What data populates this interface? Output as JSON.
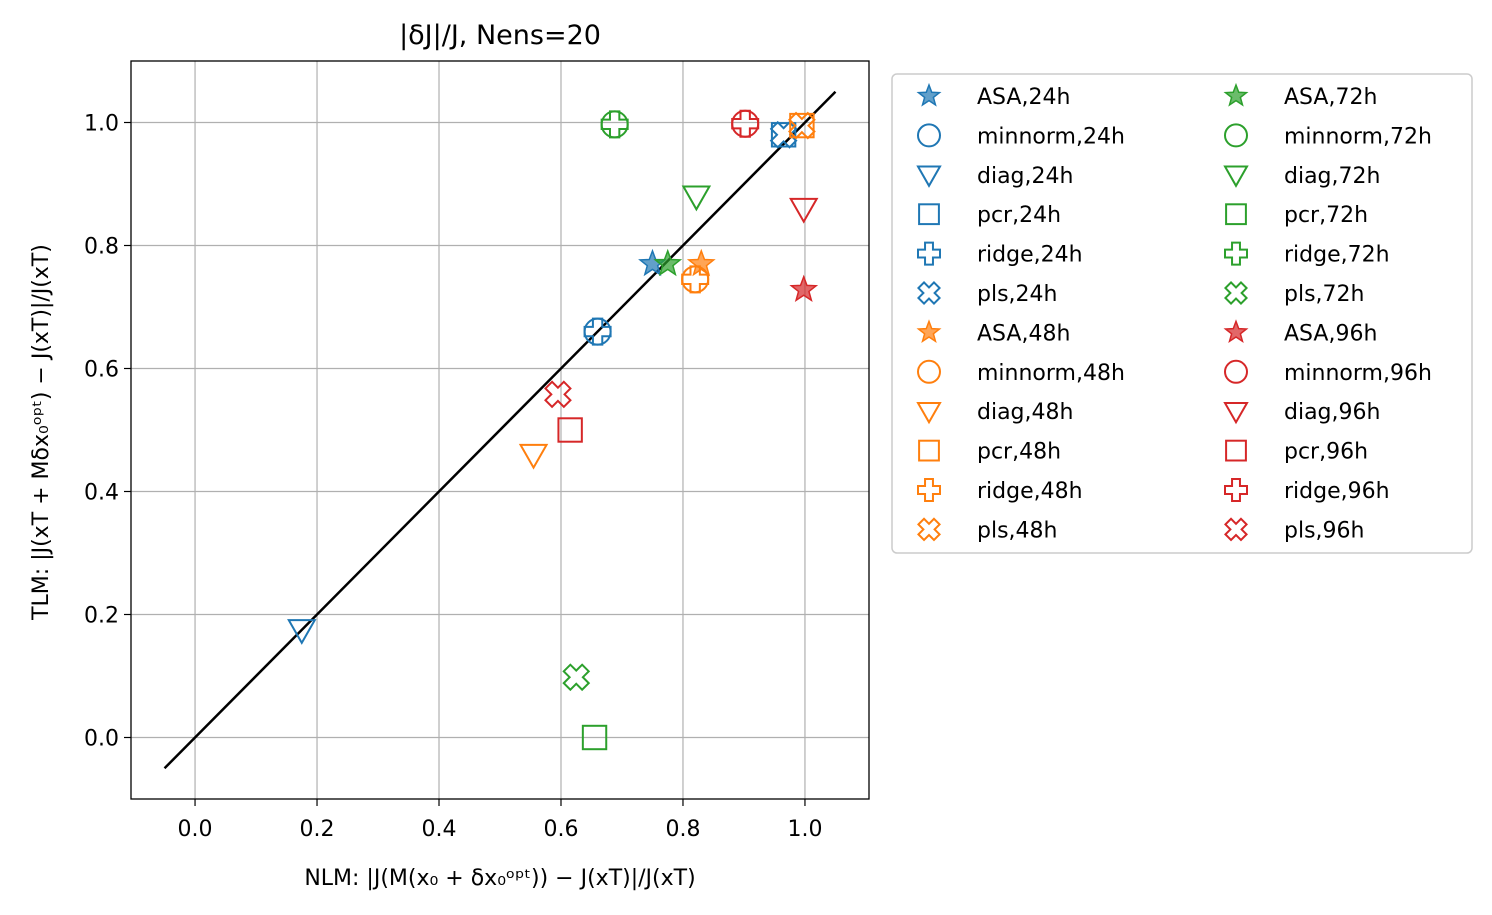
{
  "chart_data": {
    "type": "scatter",
    "title": "|δJ|/J, Nens=20",
    "xlabel": "NLM: |J(M(x₀ + δx₀ᵒᵖᵗ)) − J(xT)|/J(xT)",
    "ylabel": "TLM: |J(xT + Mδx₀ᵒᵖᵗ) − J(xT)|/J(xT)",
    "xlim": [
      -0.105,
      1.105
    ],
    "ylim": [
      -0.1,
      1.1
    ],
    "xticks": [
      "0.0",
      "0.2",
      "0.4",
      "0.6",
      "0.8",
      "1.0"
    ],
    "yticks": [
      "0.0",
      "0.2",
      "0.4",
      "0.6",
      "0.8",
      "1.0"
    ],
    "grid": true,
    "legend_position": "outside-right",
    "reference_line": {
      "x": [
        -0.05,
        1.05
      ],
      "y": [
        -0.05,
        1.05
      ],
      "color": "#000000"
    },
    "colors": {
      "24h": "#1f77b4",
      "48h": "#ff7f0e",
      "72h": "#2ca02c",
      "96h": "#d62728"
    },
    "series": [
      {
        "name": "ASA,24h",
        "marker": "star",
        "color": "#1f77b4",
        "filled": true,
        "x": [
          0.75
        ],
        "y": [
          0.77
        ]
      },
      {
        "name": "minnorm,24h",
        "marker": "circle",
        "color": "#1f77b4",
        "filled": false,
        "x": [
          0.66
        ],
        "y": [
          0.66
        ]
      },
      {
        "name": "diag,24h",
        "marker": "triangle-down",
        "color": "#1f77b4",
        "filled": false,
        "x": [
          0.175
        ],
        "y": [
          0.175
        ]
      },
      {
        "name": "pcr,24h",
        "marker": "square",
        "color": "#1f77b4",
        "filled": false,
        "x": [
          0.965
        ],
        "y": [
          0.98
        ]
      },
      {
        "name": "ridge,24h",
        "marker": "plus",
        "color": "#1f77b4",
        "filled": false,
        "x": [
          0.66
        ],
        "y": [
          0.66
        ]
      },
      {
        "name": "pls,24h",
        "marker": "x",
        "color": "#1f77b4",
        "filled": false,
        "x": [
          0.965
        ],
        "y": [
          0.98
        ]
      },
      {
        "name": "ASA,48h",
        "marker": "star",
        "color": "#ff7f0e",
        "filled": true,
        "x": [
          0.83
        ],
        "y": [
          0.77
        ]
      },
      {
        "name": "minnorm,48h",
        "marker": "circle",
        "color": "#ff7f0e",
        "filled": false,
        "x": [
          0.82
        ],
        "y": [
          0.745
        ]
      },
      {
        "name": "diag,48h",
        "marker": "triangle-down",
        "color": "#ff7f0e",
        "filled": false,
        "x": [
          0.555
        ],
        "y": [
          0.46
        ]
      },
      {
        "name": "pcr,48h",
        "marker": "square",
        "color": "#ff7f0e",
        "filled": false,
        "x": [
          0.995
        ],
        "y": [
          0.995
        ]
      },
      {
        "name": "ridge,48h",
        "marker": "plus",
        "color": "#ff7f0e",
        "filled": false,
        "x": [
          0.82
        ],
        "y": [
          0.745
        ]
      },
      {
        "name": "pls,48h",
        "marker": "x",
        "color": "#ff7f0e",
        "filled": false,
        "x": [
          0.995
        ],
        "y": [
          0.995
        ]
      },
      {
        "name": "ASA,72h",
        "marker": "star",
        "color": "#2ca02c",
        "filled": true,
        "x": [
          0.775
        ],
        "y": [
          0.77
        ]
      },
      {
        "name": "minnorm,72h",
        "marker": "circle",
        "color": "#2ca02c",
        "filled": false,
        "x": [
          0.688
        ],
        "y": [
          0.997
        ]
      },
      {
        "name": "diag,72h",
        "marker": "triangle-down",
        "color": "#2ca02c",
        "filled": false,
        "x": [
          0.822
        ],
        "y": [
          0.88
        ]
      },
      {
        "name": "pcr,72h",
        "marker": "square",
        "color": "#2ca02c",
        "filled": false,
        "x": [
          0.655
        ],
        "y": [
          0.0
        ]
      },
      {
        "name": "ridge,72h",
        "marker": "plus",
        "color": "#2ca02c",
        "filled": false,
        "x": [
          0.688
        ],
        "y": [
          0.997
        ]
      },
      {
        "name": "pls,72h",
        "marker": "x",
        "color": "#2ca02c",
        "filled": false,
        "x": [
          0.625
        ],
        "y": [
          0.098
        ]
      },
      {
        "name": "ASA,96h",
        "marker": "star",
        "color": "#d62728",
        "filled": true,
        "x": [
          0.998
        ],
        "y": [
          0.728
        ]
      },
      {
        "name": "minnorm,96h",
        "marker": "circle",
        "color": "#d62728",
        "filled": false,
        "x": [
          0.902
        ],
        "y": [
          0.998
        ]
      },
      {
        "name": "diag,96h",
        "marker": "triangle-down",
        "color": "#d62728",
        "filled": false,
        "x": [
          0.998
        ],
        "y": [
          0.86
        ]
      },
      {
        "name": "pcr,96h",
        "marker": "square",
        "color": "#d62728",
        "filled": false,
        "x": [
          0.615
        ],
        "y": [
          0.5
        ]
      },
      {
        "name": "ridge,96h",
        "marker": "plus",
        "color": "#d62728",
        "filled": false,
        "x": [
          0.902
        ],
        "y": [
          0.998
        ]
      },
      {
        "name": "pls,96h",
        "marker": "x",
        "color": "#d62728",
        "filled": false,
        "x": [
          0.595
        ],
        "y": [
          0.558
        ]
      }
    ]
  }
}
